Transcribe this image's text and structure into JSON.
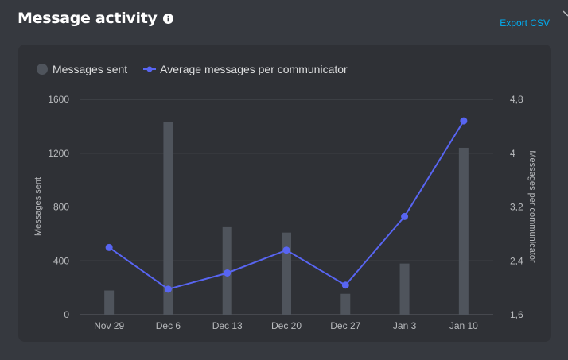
{
  "header": {
    "title": "Message activity",
    "info_icon": "info-icon",
    "export_label": "Export CSV"
  },
  "colors": {
    "bar": "#4f545c",
    "line": "#5865f2",
    "link": "#00aff4",
    "grid": "#4a4d53"
  },
  "chart_data": {
    "type": "bar",
    "categories": [
      "Nov 29",
      "Dec 6",
      "Dec 13",
      "Dec 20",
      "Dec 27",
      "Jan 3",
      "Jan 10"
    ],
    "series": [
      {
        "name": "Messages sent",
        "type": "bar",
        "axis": "left",
        "values": [
          180,
          1430,
          650,
          610,
          155,
          380,
          1240
        ]
      },
      {
        "name": "Average messages per communicator",
        "type": "line",
        "axis": "right",
        "values": [
          2.6,
          1.98,
          2.22,
          2.56,
          2.04,
          3.06,
          4.48
        ]
      }
    ],
    "ylabel": "Messages sent",
    "ylim": [
      0,
      1600
    ],
    "yticks": [
      "0",
      "400",
      "800",
      "1200",
      "1600"
    ],
    "ylabel_right": "Messages per communicator",
    "ylim_right": [
      1.6,
      4.8
    ],
    "yticks_right": [
      "1,6",
      "2,4",
      "3,2",
      "4",
      "4,8"
    ],
    "grid": true,
    "legend": "top-left"
  }
}
